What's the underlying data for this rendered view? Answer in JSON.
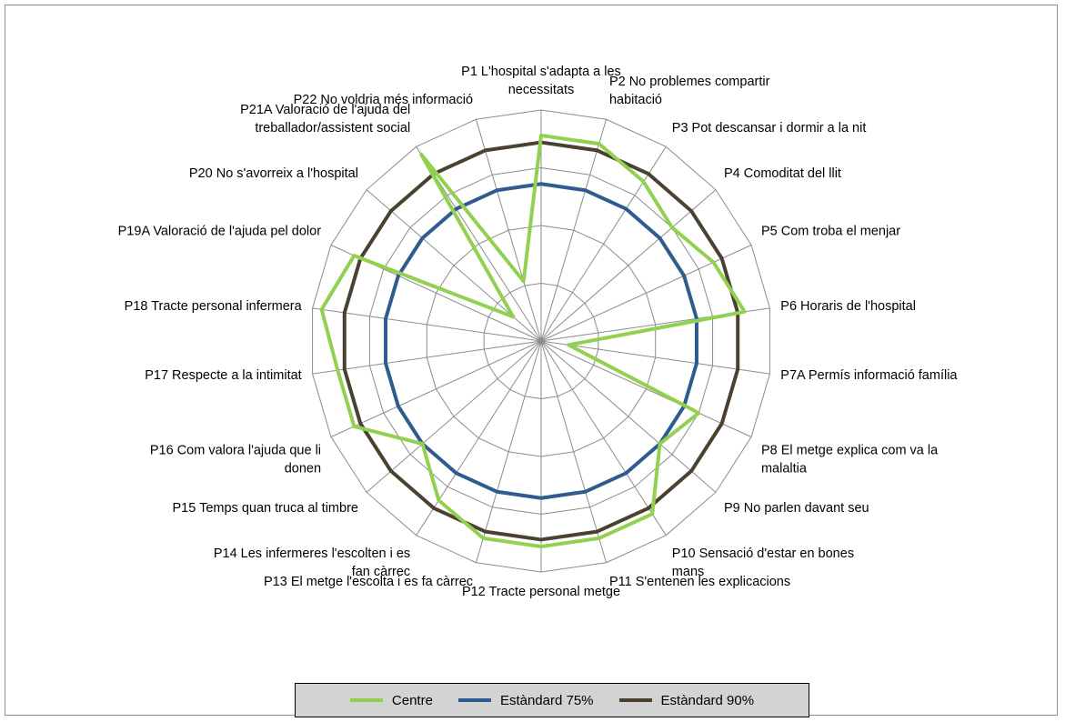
{
  "chart_data": {
    "type": "radar",
    "categories": [
      [
        "P1 L'hospital s'adapta a les",
        "necessitats"
      ],
      [
        "P2 No problemes compartir",
        "habitació"
      ],
      [
        "P3 Pot descansar i dormir a la nit"
      ],
      [
        "P4 Comoditat del llit"
      ],
      [
        "P5 Com troba el menjar"
      ],
      [
        "P6 Horaris de l'hospital"
      ],
      [
        "P7A Permís informació família"
      ],
      [
        "P8 El metge explica com va la",
        "malaltia"
      ],
      [
        "P9 No parlen davant seu"
      ],
      [
        "P10 Sensació d'estar en bones",
        "mans"
      ],
      [
        "P11 S'entenen les explicacions"
      ],
      [
        "P12 Tracte personal metge"
      ],
      [
        "P13 El metge l'escolta i es fa càrrec"
      ],
      [
        "P14 Les infermeres l'escolten i es",
        "fan càrrec"
      ],
      [
        "P15 Temps quan truca al timbre"
      ],
      [
        "P16 Com valora l'ajuda que li",
        "donen"
      ],
      [
        "P17 Respecte a la intimitat"
      ],
      [
        "P18 Tracte personal infermera"
      ],
      [
        "P19A Valoració de l'ajuda pel dolor"
      ],
      [
        "P20 No s'avorreix a l'hospital"
      ],
      [
        "P21A Valoració de l'ajuda del",
        "treballador/assistent social"
      ],
      [
        "P22 No voldria més informació"
      ]
    ],
    "series": [
      {
        "name": "Centre",
        "color": "#92d050",
        "values": [
          8.9,
          8.9,
          8.2,
          7.5,
          8.2,
          8.9,
          1.2,
          7.5,
          6.8,
          8.9,
          8.9,
          8.9,
          8.9,
          8.2,
          6.8,
          8.9,
          8.9,
          9.6,
          8.9,
          1.6,
          9.6,
          2.7
        ]
      },
      {
        "name": "Estàndard 75%",
        "color": "#2f5c8f",
        "values": [
          6.8,
          6.8,
          6.8,
          6.8,
          6.8,
          6.8,
          6.8,
          6.8,
          6.8,
          6.8,
          6.8,
          6.8,
          6.8,
          6.8,
          6.8,
          6.8,
          6.8,
          6.8,
          6.8,
          6.8,
          6.8,
          6.8
        ]
      },
      {
        "name": "Estàndard 90%",
        "color": "#4a4130",
        "values": [
          8.6,
          8.6,
          8.6,
          8.6,
          8.6,
          8.6,
          8.6,
          8.6,
          8.6,
          8.6,
          8.6,
          8.6,
          8.6,
          8.6,
          8.6,
          8.6,
          8.6,
          8.6,
          8.6,
          8.6,
          8.6,
          8.6
        ]
      }
    ],
    "rmax": 10,
    "rings": 4,
    "grid_color": "#8c8c8c",
    "legend_position": "bottom"
  }
}
